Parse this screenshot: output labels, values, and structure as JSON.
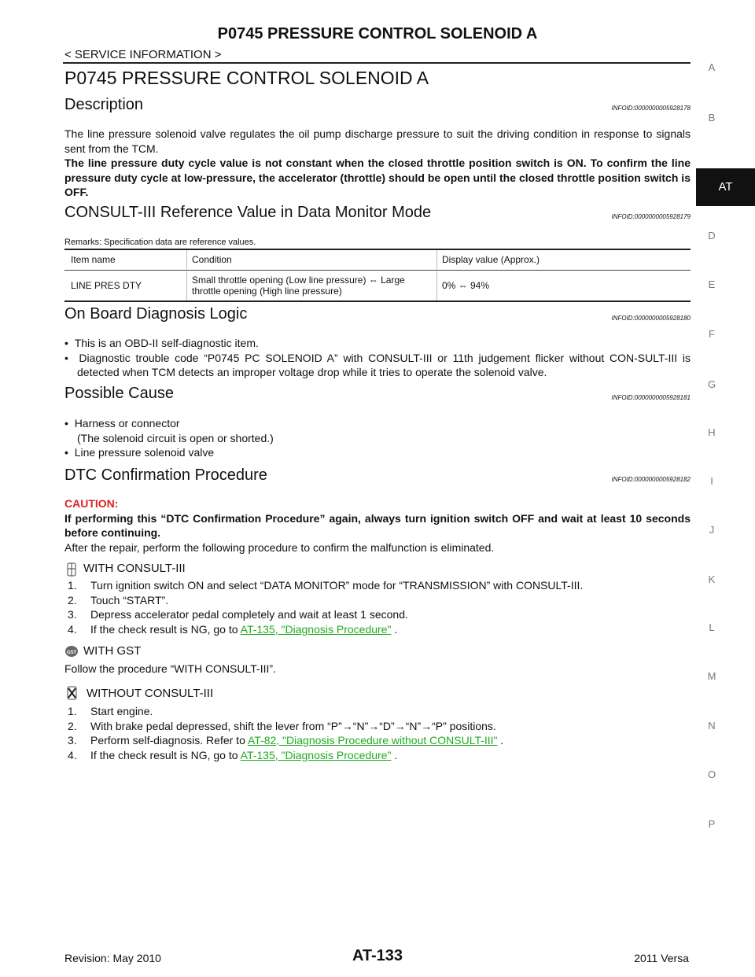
{
  "header": {
    "title": "P0745 PRESSURE CONTROL SOLENOID A",
    "section": "< SERVICE INFORMATION >"
  },
  "side_index": [
    "A",
    "B",
    "AT",
    "D",
    "E",
    "F",
    "G",
    "H",
    "I",
    "J",
    "K",
    "L",
    "M",
    "N",
    "O",
    "P"
  ],
  "page_title": "P0745 PRESSURE CONTROL SOLENOID A",
  "description": {
    "heading": "Description",
    "info_id": "INFOID:0000000005928178",
    "text": "The line pressure solenoid valve regulates the oil pump discharge pressure to suit the driving condition in response to signals sent from the TCM.",
    "bold_text": "The line pressure duty cycle value is not constant when the closed throttle position switch is ON. To confirm the line pressure duty cycle at low-pressure, the accelerator (throttle) should be open until the closed throttle position switch is OFF."
  },
  "consult": {
    "heading": "CONSULT-III Reference Value in Data Monitor Mode",
    "info_id": "INFOID:0000000005928179",
    "remarks": "Remarks: Specification data are reference values.",
    "table": {
      "columns": [
        "Item name",
        "Condition",
        "Display value (Approx.)"
      ],
      "rows": [
        [
          "LINE PRES DTY",
          "Small throttle opening (Low line pressure) ⇔ Large throttle opening (High line pressure)",
          "0% ⇔ 94%"
        ]
      ]
    }
  },
  "obd": {
    "heading": "On Board Diagnosis Logic",
    "info_id": "INFOID:0000000005928180",
    "bullets": [
      "This is an OBD-II self-diagnostic item.",
      "Diagnostic trouble code “P0745 PC SOLENOID A” with CONSULT-III or 11th judgement flicker without CON-SULT-III is detected when TCM detects an improper voltage drop while it tries to operate the solenoid valve."
    ]
  },
  "cause": {
    "heading": "Possible Cause",
    "info_id": "INFOID:0000000005928181",
    "bullets": [
      {
        "text": "Harness or connector",
        "note": "(The solenoid circuit is open or shorted.)"
      },
      {
        "text": "Line pressure solenoid valve"
      }
    ]
  },
  "dtc": {
    "heading": "DTC Confirmation Procedure",
    "info_id": "INFOID:0000000005928182",
    "caution_label": "CAUTION:",
    "caution": "If performing this “DTC Confirmation Procedure” again, always turn ignition switch OFF and wait at least 10 seconds before continuing.",
    "intro": "After the repair, perform the following procedure to confirm the malfunction is eliminated.",
    "with_consult": {
      "heading": "WITH CONSULT-III",
      "steps": [
        {
          "number": "1.",
          "text": "Turn ignition switch ON and select “DATA MONITOR” mode for “TRANSMISSION” with CONSULT-III."
        },
        {
          "number": "2.",
          "text": "Touch “START”."
        },
        {
          "number": "3.",
          "text": "Depress accelerator pedal completely and wait at least 1 second."
        },
        {
          "number": "4.",
          "text": "If the check result is NG, go to",
          "link": "AT-135, \"Diagnosis Procedure\"",
          "suffix": "."
        }
      ]
    },
    "with_gst": {
      "heading": "WITH GST",
      "text": "Follow the procedure “WITH CONSULT-III”."
    },
    "without_consult": {
      "heading": "WITHOUT CONSULT-III",
      "steps": [
        {
          "number": "1.",
          "text": "Start engine."
        },
        {
          "number": "2.",
          "text": "With brake pedal depressed, shift the lever from “P”→“N”→“D”→“N”→“P” positions."
        },
        {
          "number": "3.",
          "text": "Perform self-diagnosis. Refer to",
          "link": "AT-82, \"Diagnosis Procedure without CONSULT-III\"",
          "suffix": "."
        },
        {
          "number": "4.",
          "text": "If the check result is NG, go to",
          "link": "AT-135, \"Diagnosis Procedure\"",
          "suffix": "."
        }
      ]
    }
  },
  "footer": {
    "revision": "Revision: May 2010",
    "page": "AT-133",
    "model": "2011 Versa"
  }
}
